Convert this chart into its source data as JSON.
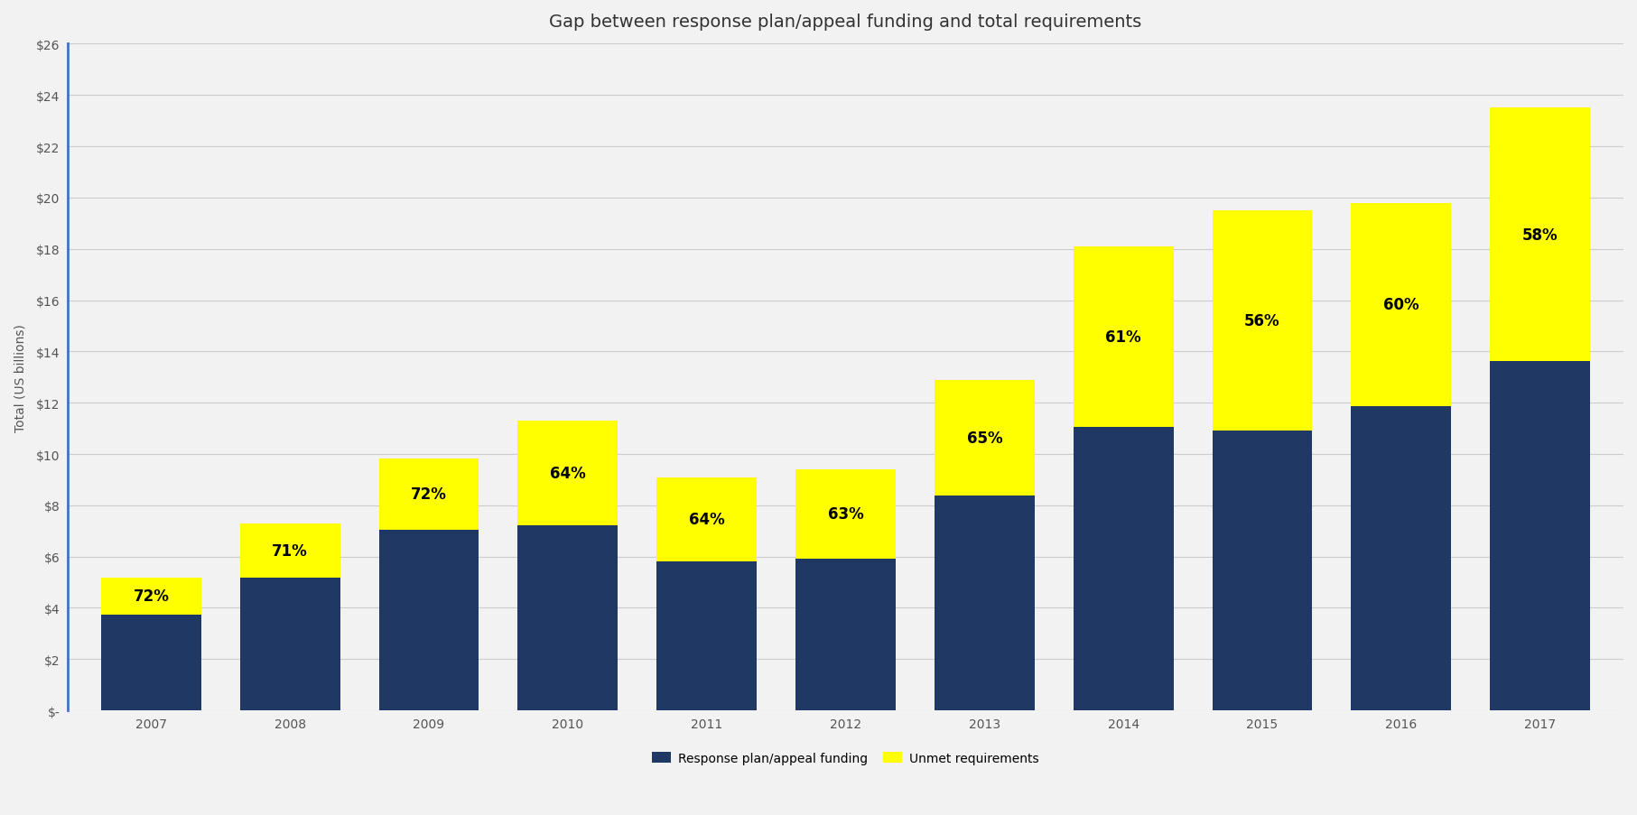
{
  "title": "Gap between response plan/appeal funding and total requirements",
  "years": [
    "2007",
    "2008",
    "2009",
    "2010",
    "2011",
    "2012",
    "2013",
    "2014",
    "2015",
    "2016",
    "2017"
  ],
  "funded_values": [
    3.74,
    5.18,
    7.06,
    7.23,
    5.82,
    5.92,
    8.39,
    11.04,
    10.92,
    11.88,
    13.63
  ],
  "total_values": [
    5.19,
    7.3,
    9.81,
    11.3,
    9.09,
    9.4,
    12.9,
    18.1,
    19.5,
    19.8,
    23.5
  ],
  "pct_labels": [
    "72%",
    "71%",
    "72%",
    "64%",
    "64%",
    "63%",
    "65%",
    "61%",
    "56%",
    "60%",
    "58%"
  ],
  "funded_color": "#1F3864",
  "unmet_color": "#FFFF00",
  "background_color": "#F2F2F2",
  "ylabel": "Total (US billions)",
  "ylim": [
    0,
    26
  ],
  "yticks": [
    0,
    2,
    4,
    6,
    8,
    10,
    12,
    14,
    16,
    18,
    20,
    22,
    24,
    26
  ],
  "ytick_labels": [
    "$-",
    "$2",
    "$4",
    "$6",
    "$8",
    "$10",
    "$12",
    "$14",
    "$16",
    "$18",
    "$20",
    "$22",
    "$24",
    "$26"
  ],
  "legend_funded": "Response plan/appeal funding",
  "legend_unmet": "Unmet requirements",
  "title_fontsize": 14,
  "label_fontsize": 10,
  "tick_fontsize": 10,
  "legend_fontsize": 10,
  "pct_fontsize": 12,
  "bar_width": 0.72
}
